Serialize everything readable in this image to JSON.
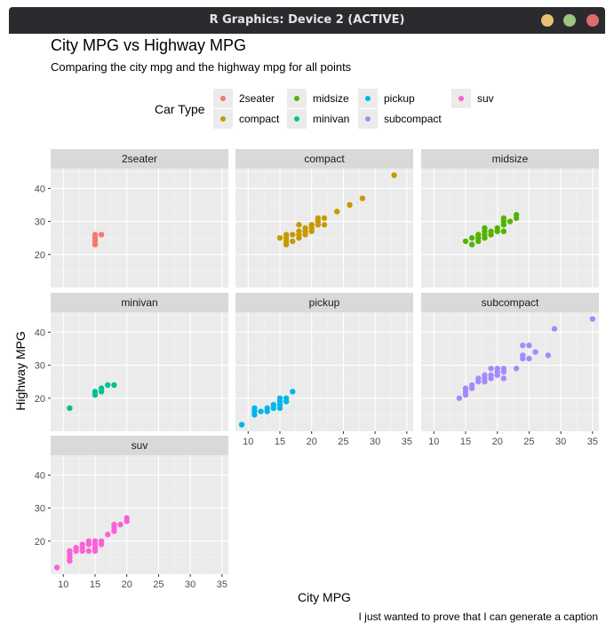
{
  "window": {
    "title": "R Graphics: Device 2 (ACTIVE)",
    "buttons": [
      {
        "name": "minimize",
        "color": "#e7c16f"
      },
      {
        "name": "maximize",
        "color": "#9ec383"
      },
      {
        "name": "close",
        "color": "#dc6b6b"
      }
    ]
  },
  "chart_data": {
    "type": "scatter",
    "title": "City MPG vs Highway MPG",
    "subtitle": "Comparing the city mpg and the highway mpg for all points",
    "xlabel": "City MPG",
    "ylabel": "Highway MPG",
    "caption": "I just wanted to prove that I can generate a caption",
    "legend_title": "Car Type",
    "legend_position": "top",
    "grid": true,
    "xlim": [
      8,
      36
    ],
    "ylim": [
      10,
      46
    ],
    "x_ticks": [
      10,
      15,
      20,
      25,
      30,
      35
    ],
    "y_ticks": [
      20,
      30,
      40
    ],
    "facets": [
      {
        "name": "2seater",
        "color": "#F8766D",
        "points": [
          [
            15,
            23
          ],
          [
            15,
            24
          ],
          [
            15,
            25
          ],
          [
            15,
            26
          ],
          [
            16,
            26
          ]
        ]
      },
      {
        "name": "compact",
        "color": "#C49A00",
        "points": [
          [
            15,
            25
          ],
          [
            16,
            23
          ],
          [
            16,
            24
          ],
          [
            16,
            25
          ],
          [
            16,
            26
          ],
          [
            17,
            24
          ],
          [
            17,
            26
          ],
          [
            18,
            25
          ],
          [
            18,
            26
          ],
          [
            18,
            27
          ],
          [
            18,
            29
          ],
          [
            19,
            26
          ],
          [
            19,
            27
          ],
          [
            19,
            28
          ],
          [
            20,
            27
          ],
          [
            20,
            28
          ],
          [
            20,
            29
          ],
          [
            21,
            29
          ],
          [
            21,
            30
          ],
          [
            21,
            31
          ],
          [
            22,
            29
          ],
          [
            22,
            31
          ],
          [
            24,
            33
          ],
          [
            26,
            35
          ],
          [
            28,
            37
          ],
          [
            33,
            44
          ]
        ]
      },
      {
        "name": "midsize",
        "color": "#53B400",
        "points": [
          [
            15,
            24
          ],
          [
            16,
            23
          ],
          [
            16,
            25
          ],
          [
            17,
            24
          ],
          [
            17,
            25
          ],
          [
            17,
            26
          ],
          [
            18,
            25
          ],
          [
            18,
            26
          ],
          [
            18,
            27
          ],
          [
            18,
            28
          ],
          [
            19,
            26
          ],
          [
            19,
            27
          ],
          [
            20,
            27
          ],
          [
            20,
            28
          ],
          [
            21,
            27
          ],
          [
            21,
            29
          ],
          [
            21,
            30
          ],
          [
            21,
            31
          ],
          [
            22,
            30
          ],
          [
            23,
            31
          ],
          [
            23,
            32
          ]
        ]
      },
      {
        "name": "minivan",
        "color": "#00C094",
        "points": [
          [
            11,
            17
          ],
          [
            15,
            21
          ],
          [
            15,
            22
          ],
          [
            16,
            22
          ],
          [
            16,
            23
          ],
          [
            17,
            24
          ],
          [
            18,
            24
          ]
        ]
      },
      {
        "name": "pickup",
        "color": "#00B6EB",
        "points": [
          [
            9,
            12
          ],
          [
            11,
            15
          ],
          [
            11,
            16
          ],
          [
            11,
            17
          ],
          [
            12,
            16
          ],
          [
            13,
            16
          ],
          [
            13,
            17
          ],
          [
            14,
            17
          ],
          [
            14,
            18
          ],
          [
            15,
            17
          ],
          [
            15,
            18
          ],
          [
            15,
            19
          ],
          [
            15,
            20
          ],
          [
            16,
            19
          ],
          [
            16,
            20
          ],
          [
            17,
            22
          ]
        ]
      },
      {
        "name": "subcompact",
        "color": "#A58AFF",
        "points": [
          [
            14,
            20
          ],
          [
            15,
            21
          ],
          [
            15,
            22
          ],
          [
            15,
            23
          ],
          [
            16,
            23
          ],
          [
            16,
            24
          ],
          [
            17,
            25
          ],
          [
            17,
            26
          ],
          [
            18,
            25
          ],
          [
            18,
            26
          ],
          [
            18,
            27
          ],
          [
            19,
            26
          ],
          [
            19,
            27
          ],
          [
            19,
            29
          ],
          [
            20,
            27
          ],
          [
            20,
            28
          ],
          [
            20,
            29
          ],
          [
            21,
            28
          ],
          [
            21,
            29
          ],
          [
            21,
            26
          ],
          [
            23,
            29
          ],
          [
            24,
            32
          ],
          [
            24,
            33
          ],
          [
            24,
            36
          ],
          [
            25,
            32
          ],
          [
            25,
            36
          ],
          [
            26,
            34
          ],
          [
            28,
            33
          ],
          [
            29,
            41
          ],
          [
            35,
            44
          ]
        ]
      },
      {
        "name": "suv",
        "color": "#FB61D7",
        "points": [
          [
            9,
            12
          ],
          [
            11,
            14
          ],
          [
            11,
            15
          ],
          [
            11,
            16
          ],
          [
            11,
            17
          ],
          [
            12,
            17
          ],
          [
            12,
            18
          ],
          [
            13,
            17
          ],
          [
            13,
            18
          ],
          [
            13,
            19
          ],
          [
            14,
            17
          ],
          [
            14,
            19
          ],
          [
            14,
            20
          ],
          [
            15,
            17
          ],
          [
            15,
            18
          ],
          [
            15,
            19
          ],
          [
            15,
            20
          ],
          [
            16,
            19
          ],
          [
            16,
            20
          ],
          [
            17,
            22
          ],
          [
            18,
            23
          ],
          [
            18,
            24
          ],
          [
            18,
            25
          ],
          [
            19,
            25
          ],
          [
            20,
            26
          ],
          [
            20,
            27
          ]
        ]
      }
    ]
  }
}
